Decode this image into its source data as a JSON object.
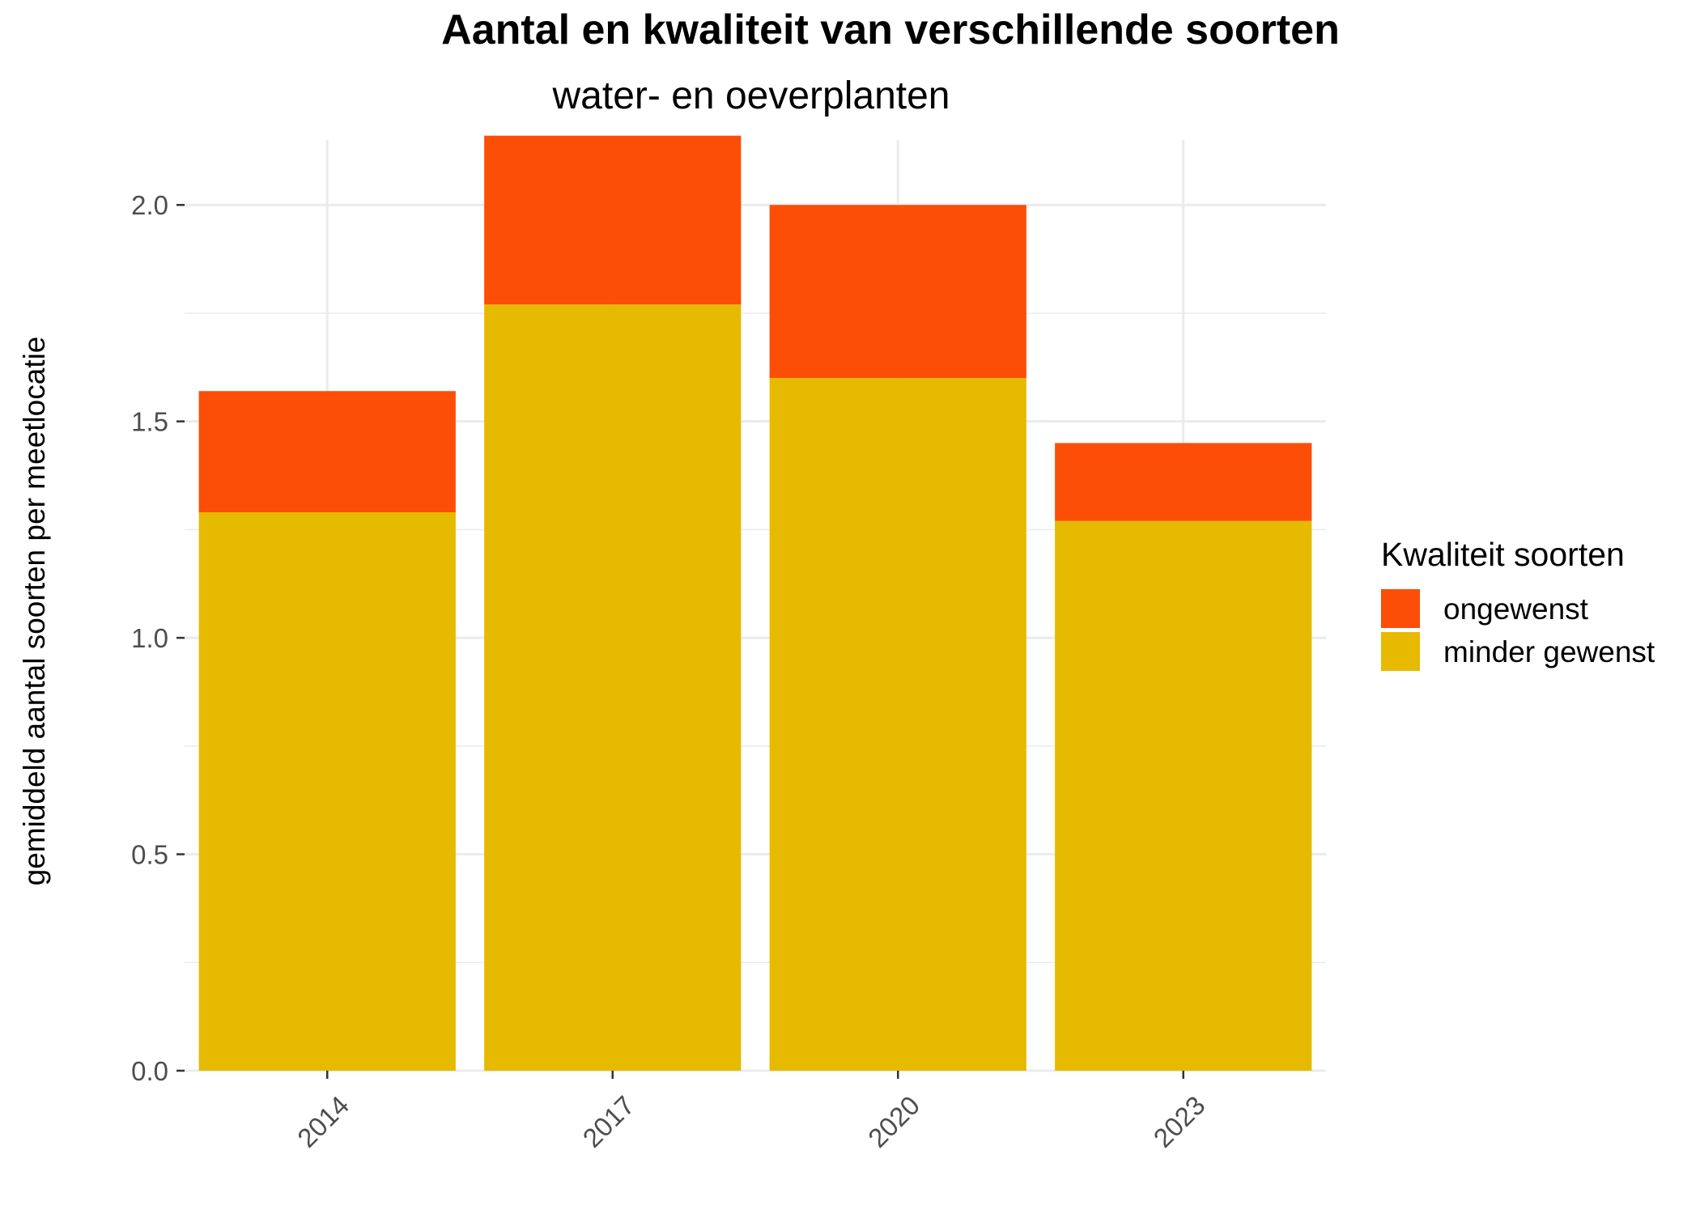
{
  "chart_data": {
    "type": "bar",
    "stacked": true,
    "title": "Aantal en kwaliteit van verschillende soorten",
    "subtitle": "water- en oeverplanten",
    "xlabel": "",
    "ylabel": "gemiddeld aantal soorten per meetlocatie",
    "categories": [
      "2014",
      "2017",
      "2020",
      "2023"
    ],
    "series": [
      {
        "name": "minder gewenst",
        "color": "#E6BA00",
        "values": [
          1.29,
          1.77,
          1.6,
          1.27
        ]
      },
      {
        "name": "ongewenst",
        "color": "#FC4E07",
        "values": [
          0.28,
          0.39,
          0.4,
          0.18
        ]
      }
    ],
    "ylim": [
      0,
      2.15
    ],
    "yticks": [
      0.0,
      0.5,
      1.0,
      1.5,
      2.0
    ],
    "ytick_labels": [
      "0.0",
      "0.5",
      "1.0",
      "1.5",
      "2.0"
    ],
    "grid": true,
    "legend": {
      "title": "Kwaliteit soorten",
      "position": "right",
      "entries": [
        {
          "label": "ongewenst",
          "color": "#FC4E07"
        },
        {
          "label": "minder gewenst",
          "color": "#E6BA00"
        }
      ]
    }
  }
}
